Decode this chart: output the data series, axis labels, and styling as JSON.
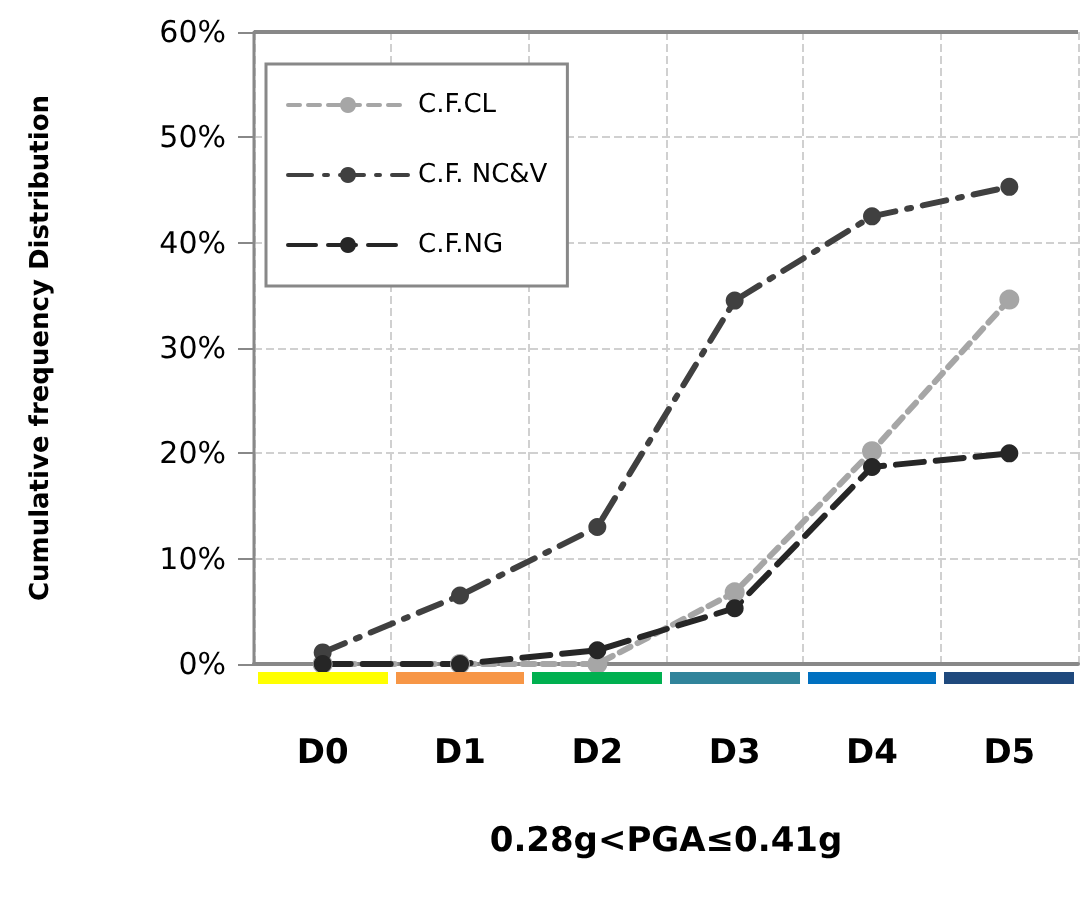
{
  "chart_data": {
    "type": "line",
    "xlabel": "0.28g<PGA≤0.41g",
    "ylabel": "Cumulative frequency Distribution",
    "categories": [
      "D0",
      "D1",
      "D2",
      "D3",
      "D4",
      "D5"
    ],
    "series": [
      {
        "name": "C.F.CL",
        "color": "#a6a6a6",
        "line_style": "dashed",
        "values": [
          0,
          0,
          0,
          6.8,
          20.2,
          34.6
        ]
      },
      {
        "name": "C.F. NC&V",
        "color": "#404040",
        "line_style": "dashed",
        "values": [
          1.1,
          6.5,
          13,
          34.5,
          42.5,
          45.3
        ]
      },
      {
        "name": "C.F.NG",
        "color": "#262626",
        "line_style": "dashed",
        "values": [
          0,
          0,
          1.3,
          5.3,
          18.7,
          20
        ]
      }
    ],
    "ylim": [
      0,
      60
    ],
    "yticks": [
      {
        "value": 0,
        "label": "0%"
      },
      {
        "value": 10,
        "label": "10%"
      },
      {
        "value": 20,
        "label": "20%"
      },
      {
        "value": 30,
        "label": "30%"
      },
      {
        "value": 40,
        "label": "40%"
      },
      {
        "value": 50,
        "label": "50%"
      },
      {
        "value": 60,
        "label": "60%"
      }
    ],
    "grid": true,
    "legend": "top left",
    "marker": "circle"
  }
}
